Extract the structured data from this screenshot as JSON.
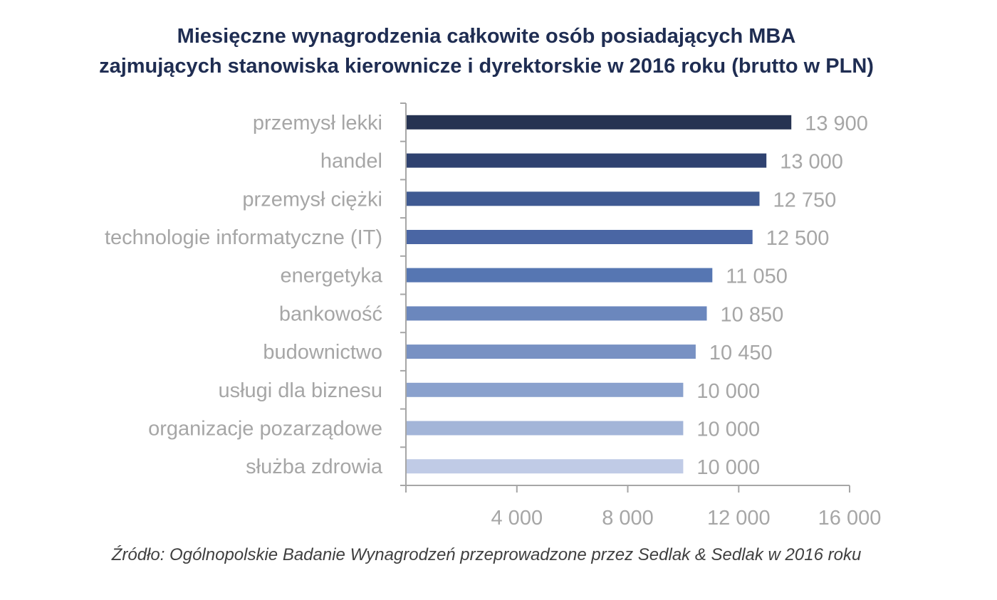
{
  "chart_data": {
    "type": "bar",
    "orientation": "horizontal",
    "title": "Miesięczne wynagrodzenia całkowite osób posiadających MBA zajmujących stanowiska kierownicze i dyrektorskie w 2016 roku (brutto w PLN)",
    "title_lines": [
      "Miesięczne wynagrodzenia całkowite osób posiadających MBA",
      "zajmujących stanowiska kierownicze i dyrektorskie w 2016 roku (brutto w PLN)"
    ],
    "categories": [
      "przemysł lekki",
      "handel",
      "przemysł ciężki",
      "technologie informatyczne (IT)",
      "energetyka",
      "bankowość",
      "budownictwo",
      "usługi dla biznesu",
      "organizacje pozarządowe",
      "służba zdrowia"
    ],
    "values": [
      13900,
      13000,
      12750,
      12500,
      11050,
      10850,
      10450,
      10000,
      10000,
      10000
    ],
    "value_labels": [
      "13 900",
      "13 000",
      "12 750",
      "12 500",
      "11 050",
      "10 850",
      "10 450",
      "10 000",
      "10 000",
      "10 000"
    ],
    "bar_colors": [
      "#263352",
      "#2f4270",
      "#3f5a92",
      "#4a66a4",
      "#5676b2",
      "#6b87bd",
      "#7891c3",
      "#8aa1cd",
      "#a3b5d8",
      "#c0cbe6"
    ],
    "xlim": [
      0,
      16000
    ],
    "xticks": [
      4000,
      8000,
      12000,
      16000
    ],
    "xtick_labels": [
      "4 000",
      "8 000",
      "12 000",
      "16 000"
    ],
    "xlabel": "",
    "ylabel": "",
    "grid": false,
    "legend": "none"
  },
  "source": "Źródło: Ogólnopolskie Badanie Wynagrodzeń przeprowadzone przez Sedlak & Sedlak w 2016 roku",
  "colors": {
    "title": "#1f2d52",
    "labels": "#a6a6a6",
    "axis": "#a6a6a6",
    "source": "#3f3f3f"
  }
}
